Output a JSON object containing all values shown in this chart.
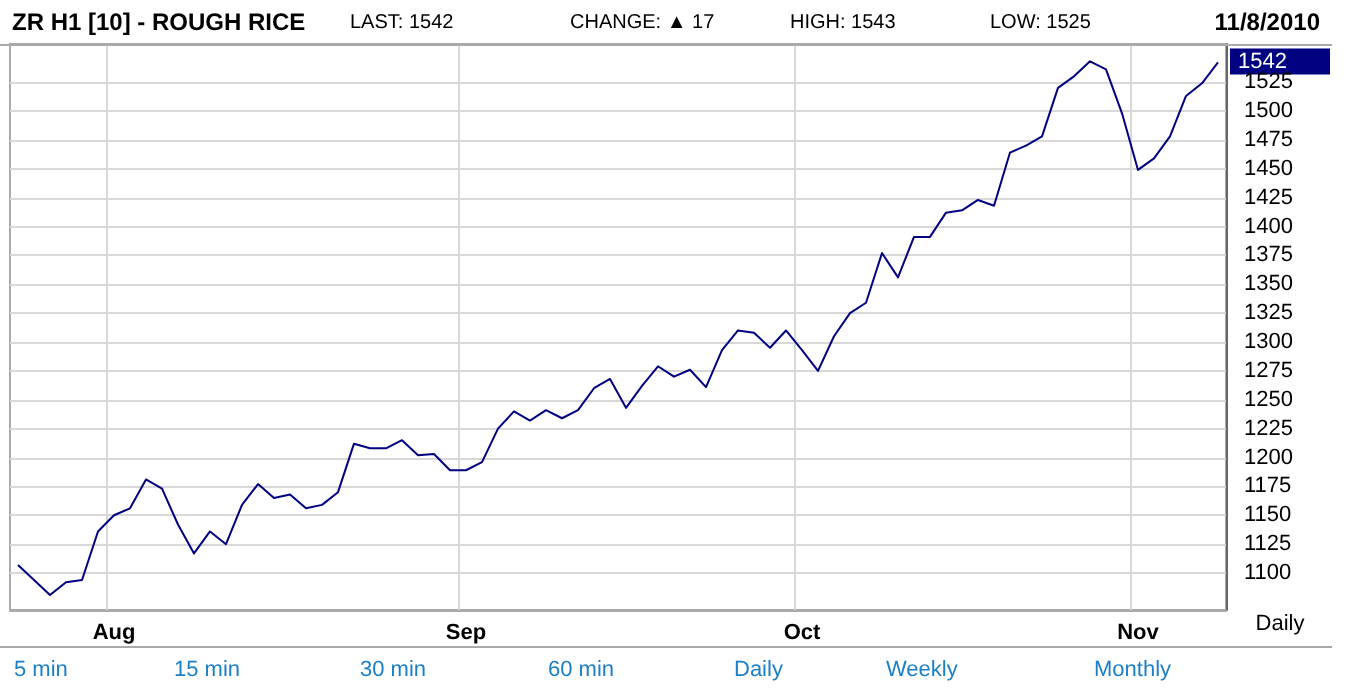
{
  "chart_data": {
    "type": "line",
    "title": "ZR H1 [10] - ROUGH RICE",
    "annotations": [
      "LAST: 1542",
      "CHANGE: ▲ 17",
      "HIGH: 1543",
      "LOW: 1525",
      "11/8/2010",
      "Daily",
      "5 min",
      "15 min",
      "30 min",
      "60 min",
      "Daily",
      "Weekly",
      "Monthly",
      "1542"
    ],
    "categories": [
      null,
      null,
      null,
      null,
      null,
      null,
      "Aug",
      null,
      null,
      null,
      null,
      null,
      null,
      null,
      null,
      null,
      null,
      null,
      null,
      null,
      null,
      null,
      null,
      null,
      null,
      null,
      null,
      null,
      "Sep",
      null,
      null,
      null,
      null,
      null,
      null,
      null,
      null,
      null,
      null,
      null,
      null,
      null,
      null,
      null,
      null,
      null,
      null,
      null,
      null,
      "Oct",
      null,
      null,
      null,
      null,
      null,
      null,
      null,
      null,
      null,
      null,
      null,
      null,
      null,
      null,
      null,
      null,
      null,
      null,
      null,
      null,
      "Nov",
      null,
      null,
      null,
      null,
      null
    ],
    "series": [
      {
        "color": "#000080",
        "values": [
          1107,
          1094,
          1081,
          1092,
          1094,
          1136,
          1150,
          1156,
          1181,
          1173,
          1142,
          1117,
          1136,
          1125,
          1159,
          1177,
          1165,
          1168,
          1156,
          1159,
          1170,
          1212,
          1208,
          1208,
          1215,
          1202,
          1203,
          1189,
          1189,
          1196,
          1225,
          1240,
          1232,
          1241,
          1234,
          1241,
          1260,
          1268,
          1243,
          1262,
          1279,
          1270,
          1276,
          1261,
          1293,
          1310,
          1308,
          1295,
          1310,
          1293,
          1275,
          1305,
          1325,
          1334,
          1377,
          1356,
          1391,
          1391,
          1412,
          1414,
          1423,
          1418,
          1464,
          1470,
          1478,
          1520,
          1530,
          1543,
          1536,
          1498,
          1449,
          1459,
          1478,
          1513,
          1524,
          1542
        ]
      }
    ],
    "ylim": [
      1068,
      1558
    ],
    "yticks": [
      1100,
      1125,
      1150,
      1175,
      1200,
      1225,
      1250,
      1275,
      1300,
      1325,
      1350,
      1375,
      1400,
      1425,
      1450,
      1475,
      1500,
      1525
    ],
    "grid": true,
    "marker": "none",
    "line_style": "solid"
  }
}
